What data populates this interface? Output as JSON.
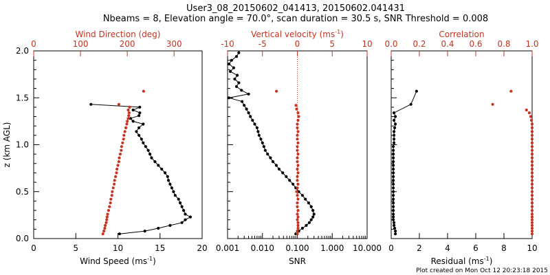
{
  "header": {
    "line1": "User3_08_20150602_041413, 20150602.041431",
    "line2": "Nbeams = 8, Elevation angle = 70.0°, scan duration = 30.5 s, SNR Threshold = 0.008"
  },
  "footer": "Plot created on Mon Oct 12 20:23:18 2015",
  "colors": {
    "black": "#000000",
    "red": "#c8321e"
  },
  "chart_data": [
    {
      "type": "scatter",
      "panel": "wind",
      "ylabel": "z (km AGL)",
      "ylim": [
        0.0,
        2.0
      ],
      "yticks": [
        "0.0",
        "0.5",
        "1.0",
        "1.5",
        "2.0"
      ],
      "bottom_axis": {
        "label_main": "Wind Speed (ms",
        "label_exp": "-1",
        "label_end": ")",
        "lim": [
          0,
          20
        ],
        "ticks": [
          "0",
          "5",
          "10",
          "15",
          "20"
        ]
      },
      "top_axis": {
        "label": "Wind Direction (deg)",
        "lim": [
          0,
          360
        ],
        "ticks": [
          "0",
          "100",
          "200",
          "300"
        ],
        "tick_values": [
          0,
          100,
          200,
          300
        ]
      },
      "series": [
        {
          "axis": "bottom",
          "color": "black",
          "connected": true,
          "z": [
            0.05,
            0.08,
            0.11,
            0.14,
            0.17,
            0.2,
            0.23,
            0.26,
            0.3,
            0.34,
            0.38,
            0.42,
            0.46,
            0.5,
            0.54,
            0.58,
            0.62,
            0.66,
            0.7,
            0.74,
            0.78,
            0.82,
            0.86,
            0.9,
            0.94,
            0.98,
            1.02,
            1.06,
            1.1,
            1.14,
            1.18,
            1.22,
            1.25,
            1.28,
            1.31,
            1.34,
            1.37,
            1.4,
            1.43
          ],
          "v": [
            10.2,
            13.2,
            14.8,
            16.2,
            17.6,
            18.0,
            18.6,
            18.0,
            17.8,
            17.6,
            17.4,
            17.2,
            16.8,
            16.6,
            16.4,
            16.2,
            16.0,
            15.9,
            15.6,
            15.2,
            14.8,
            14.4,
            14.0,
            13.8,
            13.6,
            13.3,
            13.0,
            12.8,
            12.5,
            12.2,
            12.5,
            13.0,
            11.8,
            11.5,
            12.5,
            12.6,
            11.8,
            12.6,
            6.8
          ]
        },
        {
          "axis": "top",
          "color": "red",
          "connected": false,
          "z": [
            0.05,
            0.08,
            0.11,
            0.14,
            0.17,
            0.2,
            0.23,
            0.26,
            0.3,
            0.34,
            0.38,
            0.42,
            0.46,
            0.5,
            0.54,
            0.58,
            0.62,
            0.66,
            0.7,
            0.74,
            0.78,
            0.82,
            0.86,
            0.9,
            0.94,
            0.98,
            1.02,
            1.06,
            1.1,
            1.14,
            1.18,
            1.22,
            1.25,
            1.28,
            1.31,
            1.34,
            1.37,
            1.4,
            1.43,
            1.57
          ],
          "v": [
            148,
            150,
            152,
            153,
            155,
            156,
            157,
            158,
            160,
            162,
            164,
            165,
            167,
            168,
            170,
            172,
            173,
            175,
            177,
            178,
            180,
            182,
            183,
            185,
            187,
            188,
            190,
            192,
            193,
            195,
            197,
            199,
            200,
            202,
            203,
            204,
            202,
            205,
            182,
            235
          ]
        }
      ]
    },
    {
      "type": "scatter",
      "panel": "vertical",
      "ylim": [
        0.0,
        2.0
      ],
      "bottom_axis": {
        "label": "SNR",
        "scale": "log",
        "lim": [
          0.001,
          10.0
        ],
        "ticks": [
          "0.001",
          "0.010",
          "0.100",
          "1.000",
          "10.000"
        ],
        "tick_values": [
          0.001,
          0.01,
          0.1,
          1.0,
          10.0
        ]
      },
      "top_axis": {
        "label_main": "Vertical velocity (ms",
        "label_exp": "-1",
        "label_end": ")",
        "lim": [
          -10,
          10
        ],
        "ticks": [
          "-10",
          "-5",
          "0",
          "5",
          "10"
        ],
        "tick_values": [
          -10,
          -5,
          0,
          5,
          10
        ]
      },
      "series": [
        {
          "axis": "bottom",
          "color": "black",
          "connected": true,
          "z": [
            0.05,
            0.08,
            0.11,
            0.14,
            0.17,
            0.2,
            0.23,
            0.26,
            0.3,
            0.34,
            0.38,
            0.42,
            0.46,
            0.5,
            0.54,
            0.58,
            0.62,
            0.66,
            0.7,
            0.74,
            0.78,
            0.82,
            0.86,
            0.9,
            0.94,
            0.98,
            1.02,
            1.06,
            1.1,
            1.14,
            1.18,
            1.22,
            1.26,
            1.3,
            1.34,
            1.38,
            1.42,
            1.46,
            1.5,
            1.54,
            1.58,
            1.62,
            1.66,
            1.7,
            1.74,
            1.78,
            1.82,
            1.86,
            1.9,
            1.94,
            1.98
          ],
          "v": [
            0.09,
            0.11,
            0.14,
            0.18,
            0.22,
            0.25,
            0.28,
            0.3,
            0.28,
            0.25,
            0.21,
            0.17,
            0.14,
            0.11,
            0.09,
            0.075,
            0.06,
            0.048,
            0.038,
            0.03,
            0.025,
            0.02,
            0.017,
            0.014,
            0.012,
            0.011,
            0.01,
            0.009,
            0.008,
            0.0075,
            0.007,
            0.006,
            0.0052,
            0.0045,
            0.004,
            0.0035,
            0.003,
            0.0026,
            0.0011,
            0.004,
            0.0025,
            0.0018,
            0.0021,
            0.0016,
            0.0019,
            0.0012,
            0.0015,
            0.0011,
            0.0013,
            0.0018,
            0.0021
          ]
        },
        {
          "axis": "top",
          "color": "red",
          "connected": false,
          "z": [
            0.05,
            0.08,
            0.11,
            0.14,
            0.17,
            0.2,
            0.23,
            0.26,
            0.3,
            0.34,
            0.38,
            0.42,
            0.46,
            0.5,
            0.54,
            0.58,
            0.62,
            0.66,
            0.7,
            0.74,
            0.78,
            0.82,
            0.86,
            0.9,
            0.94,
            0.98,
            1.02,
            1.06,
            1.1,
            1.14,
            1.18,
            1.22,
            1.26,
            1.3,
            1.34,
            1.38,
            1.42,
            1.57
          ],
          "v": [
            0.0,
            0.0,
            0.1,
            0.1,
            0.1,
            0.0,
            0.1,
            0.0,
            0.1,
            0.0,
            0.0,
            0.1,
            0.0,
            -0.1,
            0.0,
            0.1,
            0.0,
            0.0,
            0.1,
            0.0,
            0.1,
            0.0,
            0.0,
            0.1,
            0.0,
            0.0,
            0.1,
            0.0,
            0.0,
            0.1,
            0.0,
            0.0,
            0.1,
            0.2,
            0.1,
            -0.1,
            -0.2,
            -3.0
          ]
        }
      ]
    },
    {
      "type": "scatter",
      "panel": "residual",
      "ylim": [
        0.0,
        2.0
      ],
      "bottom_axis": {
        "label_main": "Residual (ms",
        "label_exp": "-1",
        "label_end": ")",
        "lim": [
          0,
          10
        ],
        "ticks": [
          "0",
          "2",
          "4",
          "6",
          "8",
          "10"
        ],
        "tick_values": [
          0,
          2,
          4,
          6,
          8,
          10
        ]
      },
      "top_axis": {
        "label": "Correlation",
        "lim": [
          0.0,
          1.0
        ],
        "ticks": [
          "0.0",
          "0.2",
          "0.4",
          "0.6",
          "0.8",
          "1.0"
        ],
        "tick_values": [
          0.0,
          0.2,
          0.4,
          0.6,
          0.8,
          1.0
        ]
      },
      "series": [
        {
          "axis": "bottom",
          "color": "black",
          "connected": true,
          "z": [
            0.05,
            0.08,
            0.11,
            0.14,
            0.17,
            0.2,
            0.23,
            0.26,
            0.3,
            0.34,
            0.38,
            0.42,
            0.46,
            0.5,
            0.54,
            0.58,
            0.62,
            0.66,
            0.7,
            0.74,
            0.78,
            0.82,
            0.86,
            0.9,
            0.94,
            0.98,
            1.02,
            1.06,
            1.1,
            1.14,
            1.18,
            1.22,
            1.26,
            1.3,
            1.34,
            1.43,
            1.57
          ],
          "v": [
            0.3,
            0.3,
            0.25,
            0.2,
            0.2,
            0.15,
            0.15,
            0.15,
            0.15,
            0.15,
            0.15,
            0.15,
            0.15,
            0.15,
            0.15,
            0.15,
            0.15,
            0.15,
            0.15,
            0.15,
            0.15,
            0.15,
            0.15,
            0.15,
            0.15,
            0.15,
            0.2,
            0.2,
            0.2,
            0.2,
            0.25,
            0.3,
            0.2,
            0.3,
            0.2,
            1.4,
            1.8
          ]
        },
        {
          "axis": "top",
          "color": "red",
          "connected": false,
          "z": [
            0.05,
            0.08,
            0.11,
            0.14,
            0.17,
            0.2,
            0.23,
            0.26,
            0.3,
            0.34,
            0.38,
            0.42,
            0.46,
            0.5,
            0.54,
            0.58,
            0.62,
            0.66,
            0.7,
            0.74,
            0.78,
            0.82,
            0.86,
            0.9,
            0.94,
            0.98,
            1.02,
            1.06,
            1.1,
            1.14,
            1.18,
            1.22,
            1.26,
            1.3,
            1.34,
            1.37,
            1.43,
            1.57
          ],
          "v": [
            1.0,
            1.0,
            1.0,
            1.0,
            1.0,
            1.0,
            1.0,
            1.0,
            1.0,
            1.0,
            1.0,
            1.0,
            1.0,
            1.0,
            1.0,
            1.0,
            1.0,
            1.0,
            1.0,
            1.0,
            1.0,
            1.0,
            1.0,
            1.0,
            1.0,
            1.0,
            1.0,
            1.0,
            1.0,
            1.0,
            1.0,
            1.0,
            0.995,
            0.99,
            0.98,
            0.96,
            0.72,
            0.85
          ]
        }
      ]
    }
  ]
}
